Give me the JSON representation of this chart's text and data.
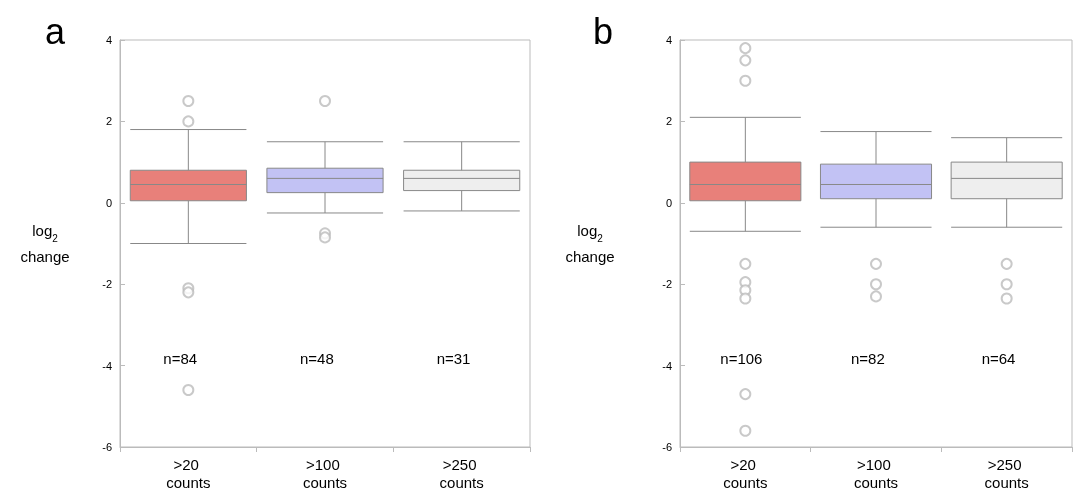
{
  "chart_data": [
    {
      "type": "box",
      "title": "a",
      "ylabel": "log$_{2}$ change",
      "categories": [
        ">20 counts",
        ">100 counts",
        ">250 counts"
      ],
      "colors": [
        "#e8807a",
        "#c2c2f4",
        "#eeeeee"
      ],
      "boxes": [
        {
          "low": -1.0,
          "q1": 0.05,
          "median": 0.45,
          "q3": 0.8,
          "high": 1.8,
          "outliers": [
            2.5,
            2.0,
            -2.1,
            -2.2,
            -4.6
          ]
        },
        {
          "low": -0.25,
          "q1": 0.25,
          "median": 0.6,
          "q3": 0.85,
          "high": 1.5,
          "outliers": [
            2.5,
            -0.75,
            -0.85
          ]
        },
        {
          "low": -0.2,
          "q1": 0.3,
          "median": 0.6,
          "q3": 0.8,
          "high": 1.5
        }
      ],
      "ylim": [
        -6,
        4
      ],
      "yticks": [
        -6,
        -4,
        -2,
        0,
        2,
        4
      ],
      "grid": false,
      "marker": "circle",
      "annotations": [
        "n=84",
        "n=48",
        "n=31"
      ]
    },
    {
      "type": "box",
      "title": "b",
      "ylabel": "log$_{2}$ change",
      "categories": [
        ">20 counts",
        ">100 counts",
        ">250 counts"
      ],
      "colors": [
        "#e8807a",
        "#c2c2f4",
        "#eeeeee"
      ],
      "boxes": [
        {
          "low": -0.7,
          "q1": 0.05,
          "median": 0.45,
          "q3": 1.0,
          "high": 2.1,
          "outliers": [
            3.8,
            3.5,
            3.0,
            -1.5,
            -1.95,
            -2.15,
            -2.35,
            -4.7,
            -5.6
          ]
        },
        {
          "low": -0.6,
          "q1": 0.1,
          "median": 0.45,
          "q3": 0.95,
          "high": 1.75,
          "outliers": [
            -1.5,
            -2.0,
            -2.3
          ]
        },
        {
          "low": -0.6,
          "q1": 0.1,
          "median": 0.6,
          "q3": 1.0,
          "high": 1.6,
          "outliers": [
            -1.5,
            -2.0,
            -2.35
          ]
        }
      ],
      "ylim": [
        -6,
        4
      ],
      "yticks": [
        -6,
        -4,
        -2,
        0,
        2,
        4
      ],
      "grid": false,
      "marker": "circle",
      "annotations": [
        "n=106",
        "n=82",
        "n=64"
      ]
    }
  ]
}
